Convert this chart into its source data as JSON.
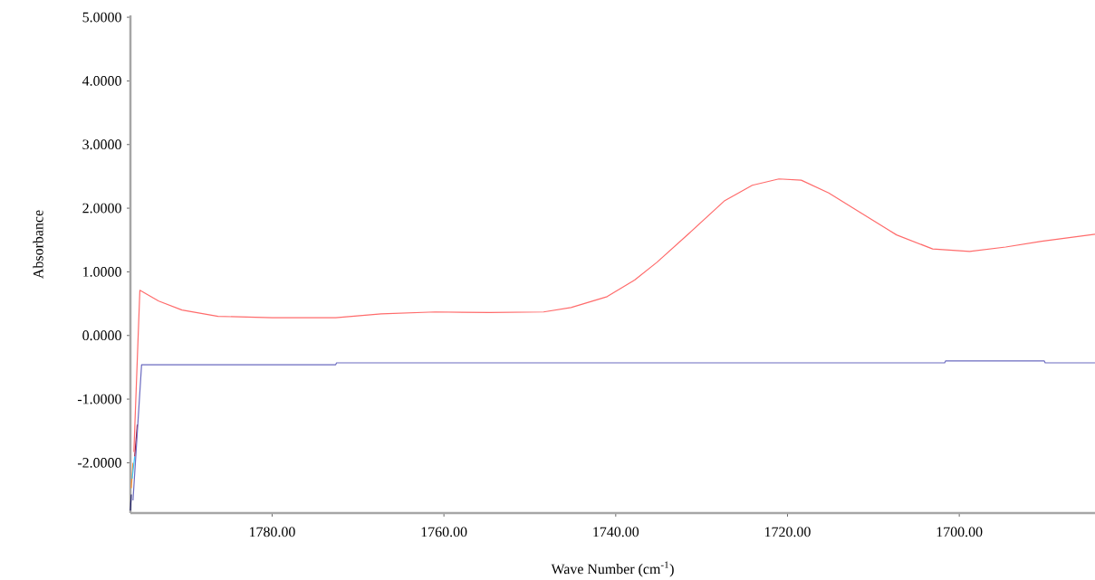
{
  "chart_data": {
    "type": "line",
    "xlabel": "Wave Number (cm$^{-1}$)",
    "ylabel": "Absorbance",
    "xlim": [
      1796.5,
      1684.2
    ],
    "ylim": [
      -2.79,
      5.03
    ],
    "xticks": [
      {
        "value": 1780,
        "label": "1780.00"
      },
      {
        "value": 1760,
        "label": "1760.00"
      },
      {
        "value": 1740,
        "label": "1740.00"
      },
      {
        "value": 1720,
        "label": "1720.00"
      },
      {
        "value": 1700,
        "label": "1700.00"
      }
    ],
    "yticks": [
      {
        "value": -2,
        "label": "-2.0000"
      },
      {
        "value": -1,
        "label": "-1.0000"
      },
      {
        "value": 0,
        "label": "0.0000"
      },
      {
        "value": 1,
        "label": "1.0000"
      },
      {
        "value": 2,
        "label": "2.0000"
      },
      {
        "value": 3,
        "label": "3.0000"
      },
      {
        "value": 4,
        "label": "4.0000"
      },
      {
        "value": 5,
        "label": "5.0000"
      }
    ],
    "grid": false,
    "marker": "none",
    "line_style": "solid",
    "series": [
      {
        "color": "#1a1a66",
        "x": [
          1796.5,
          1796.4
        ],
        "values": [
          -2.75,
          -2.5
        ]
      },
      {
        "color": "#ff8c2a",
        "x": [
          1796.4,
          1796.2
        ],
        "values": [
          -2.4,
          -2.0
        ]
      },
      {
        "color": "#33ccff",
        "x": [
          1796.3,
          1796.0
        ],
        "values": [
          -2.25,
          -1.9
        ]
      },
      {
        "color": "#aa1133",
        "x": [
          1796.0,
          1795.7
        ],
        "values": [
          -1.9,
          -1.4
        ]
      },
      {
        "color": "#ff6b6b",
        "x": [
          1796.1,
          1795.4,
          1793.2,
          1790.5,
          1786.3,
          1780,
          1772.6,
          1767.3,
          1761,
          1754.7,
          1748.4,
          1745.2,
          1741,
          1737.8,
          1735.2,
          1731.5,
          1727.3,
          1724.1,
          1721,
          1718.4,
          1715.2,
          1711.5,
          1707.3,
          1703.1,
          1698.8,
          1694.6,
          1690.4,
          1684.2
        ],
        "values": [
          -1.83,
          0.71,
          0.54,
          0.4,
          0.3,
          0.28,
          0.28,
          0.34,
          0.37,
          0.36,
          0.37,
          0.44,
          0.61,
          0.87,
          1.15,
          1.6,
          2.12,
          2.36,
          2.46,
          2.44,
          2.24,
          1.93,
          1.58,
          1.36,
          1.32,
          1.39,
          1.48,
          1.59
        ]
      },
      {
        "color": "#6b6bc0",
        "x": [
          1796.2,
          1795.2,
          1772.6,
          1772.5,
          1701.7,
          1701.6,
          1690.1,
          1690.0,
          1684.2
        ],
        "values": [
          -2.59,
          -0.46,
          -0.46,
          -0.43,
          -0.43,
          -0.4,
          -0.4,
          -0.43,
          -0.43
        ]
      }
    ]
  }
}
